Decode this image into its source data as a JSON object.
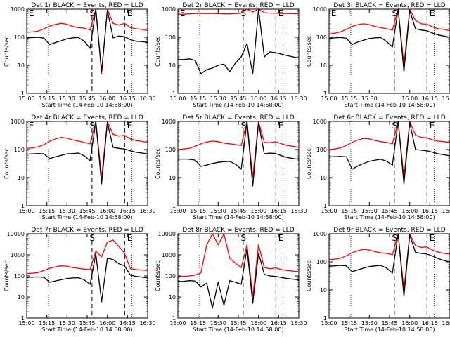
{
  "page": {
    "background": "#ffffff"
  },
  "colors": {
    "events": "#000000",
    "lld": "#ff0000",
    "axes": "#000000"
  },
  "chart_data": [
    {
      "type": "line",
      "title": "Det 1r BLACK = Events, RED = LLD",
      "xlabel": "Start Time (14-Feb-10 14:58:00)",
      "ylabel": "Counts/sec",
      "yscale": "log",
      "ylim": [
        1,
        1000
      ],
      "xlim": [
        0,
        100
      ],
      "x_ticks": [
        "15:00",
        "15:15",
        "15:30",
        "15:45",
        "16:00",
        "16:15",
        "16:30"
      ],
      "y_ticks": [
        "1",
        "10",
        "100",
        "1000"
      ],
      "markers": [
        "E",
        "S",
        "E"
      ],
      "series": [
        {
          "name": "BLACK = Events",
          "values": [
            95,
            97,
            100,
            93,
            55,
            65,
            75,
            88,
            95,
            98,
            72,
            40,
            1000,
            6,
            900,
            95,
            110,
            105,
            82,
            72,
            70,
            65
          ]
        },
        {
          "name": "RED = LLD",
          "values": [
            150,
            155,
            165,
            200,
            250,
            285,
            310,
            290,
            240,
            220,
            210,
            180,
            1000,
            5,
            1000,
            310,
            270,
            310,
            220,
            200,
            190,
            170
          ]
        }
      ]
    },
    {
      "type": "line",
      "title": "Det 2r BLACK = Events, RED = LLD",
      "xlabel": "Start Time (14-Feb-10 14:58:00)",
      "ylabel": "Counts/sec",
      "yscale": "log",
      "ylim": [
        1,
        1000
      ],
      "xlim": [
        0,
        100
      ],
      "x_ticks": [
        "15:00",
        "15:15",
        "15:30",
        "15:45",
        "16:00",
        "16:15",
        "16:30"
      ],
      "y_ticks": [
        "1",
        "10",
        "100",
        "1000"
      ],
      "markers": [
        "E",
        "S",
        "E"
      ],
      "series": [
        {
          "name": "BLACK = Events",
          "values": [
            16,
            16,
            17,
            15,
            5,
            7,
            8,
            10,
            11,
            6,
            12,
            20,
            60,
            5,
            1000,
            20,
            30,
            28,
            25,
            22,
            20,
            18
          ]
        },
        {
          "name": "RED = LLD",
          "values": [
            650,
            660,
            680,
            700,
            700,
            700,
            700,
            690,
            680,
            680,
            690,
            720,
            1000,
            800,
            1000,
            750,
            730,
            720,
            700,
            700,
            690,
            680
          ]
        }
      ]
    },
    {
      "type": "line",
      "title": "Det 3r BLACK = Events, RED = LLD",
      "xlabel": "Start Time (14-Feb-10 14:58:00)",
      "ylabel": "Counts/sec",
      "yscale": "log",
      "ylim": [
        1,
        1000
      ],
      "xlim": [
        0,
        100
      ],
      "x_ticks": [
        "15:00",
        "15:15",
        "15:30",
        "16:00",
        "16:15",
        "16:30"
      ],
      "y_ticks": [
        "1",
        "10",
        "100",
        "1000"
      ],
      "markers": [
        "E",
        "S",
        "E"
      ],
      "series": [
        {
          "name": "BLACK = Events",
          "values": [
            90,
            95,
            98,
            92,
            55,
            68,
            78,
            90,
            95,
            98,
            70,
            45,
            1000,
            6,
            900,
            200,
            180,
            170,
            140,
            120,
            110,
            100
          ]
        },
        {
          "name": "RED = LLD",
          "values": [
            130,
            140,
            155,
            190,
            240,
            280,
            300,
            280,
            240,
            220,
            200,
            180,
            1000,
            10,
            1000,
            400,
            300,
            290,
            230,
            200,
            190,
            170
          ]
        }
      ]
    },
    {
      "type": "line",
      "title": "Det 4r BLACK = Events, RED = LLD",
      "xlabel": "Start Time (14-Feb-10 14:58:00)",
      "ylabel": "Counts/sec",
      "yscale": "log",
      "ylim": [
        1,
        1000
      ],
      "xlim": [
        0,
        100
      ],
      "x_ticks": [
        "15:00",
        "15:15",
        "15:30",
        "15:45",
        "16:00",
        "16:15",
        "16:30"
      ],
      "y_ticks": [
        "1",
        "10",
        "100",
        "1000"
      ],
      "markers": [
        "E",
        "S",
        "E"
      ],
      "series": [
        {
          "name": "BLACK = Events",
          "values": [
            68,
            70,
            72,
            70,
            48,
            55,
            62,
            70,
            72,
            75,
            60,
            40,
            1000,
            6,
            900,
            120,
            110,
            105,
            90,
            80,
            75,
            70
          ]
        },
        {
          "name": "RED = LLD",
          "values": [
            110,
            115,
            125,
            150,
            200,
            240,
            270,
            255,
            220,
            200,
            180,
            160,
            1000,
            10,
            1000,
            350,
            300,
            320,
            240,
            210,
            195,
            180
          ]
        }
      ]
    },
    {
      "type": "line",
      "title": "Det 5r BLACK = Events, RED = LLD",
      "xlabel": "Start Time (14-Feb-10 14:58:00)",
      "ylabel": "Counts/sec",
      "yscale": "log",
      "ylim": [
        1,
        1000
      ],
      "xlim": [
        0,
        100
      ],
      "x_ticks": [
        "15:00",
        "15:15",
        "15:30",
        "15:45",
        "16:00",
        "16:15",
        "16:30"
      ],
      "y_ticks": [
        "1",
        "10",
        "100",
        "1000"
      ],
      "markers": [
        "S",
        "E"
      ],
      "series": [
        {
          "name": "BLACK = Events",
          "values": [
            45,
            46,
            45,
            42,
            25,
            28,
            32,
            35,
            37,
            38,
            30,
            20,
            1000,
            5,
            900,
            70,
            75,
            72,
            60,
            52,
            48,
            45
          ]
        },
        {
          "name": "RED = LLD",
          "values": [
            100,
            105,
            110,
            130,
            160,
            185,
            200,
            190,
            170,
            160,
            150,
            140,
            1000,
            10,
            1000,
            180,
            175,
            190,
            160,
            140,
            130,
            120
          ]
        }
      ]
    },
    {
      "type": "line",
      "title": "Det 6r BLACK = Events, RED = LLD",
      "xlabel": "Start Time (14-Feb-10 14:58:00)",
      "ylabel": "Counts/sec",
      "yscale": "log",
      "ylim": [
        1,
        1000
      ],
      "xlim": [
        0,
        100
      ],
      "x_ticks": [
        "15:00",
        "15:15",
        "15:30",
        "15:45",
        "16:00",
        "16:15",
        "16:30"
      ],
      "y_ticks": [
        "1",
        "10",
        "100",
        "1000"
      ],
      "markers": [
        "S",
        "E"
      ],
      "series": [
        {
          "name": "BLACK = Events",
          "values": [
            55,
            56,
            57,
            55,
            20,
            26,
            32,
            38,
            42,
            45,
            38,
            28,
            1000,
            6,
            900,
            100,
            95,
            90,
            80,
            70,
            65,
            60
          ]
        },
        {
          "name": "RED = LLD",
          "values": [
            100,
            105,
            115,
            140,
            180,
            220,
            250,
            240,
            210,
            190,
            180,
            160,
            1000,
            10,
            1000,
            330,
            270,
            260,
            220,
            200,
            190,
            180
          ]
        }
      ]
    },
    {
      "type": "line",
      "title": "Det 7r BLACK = Events, RED = LLD",
      "xlabel": "Start Time (14-Feb-10 14:58:00)",
      "ylabel": "Counts/sec",
      "yscale": "log",
      "ylim": [
        1,
        10000
      ],
      "xlim": [
        0,
        100
      ],
      "x_ticks": [
        "15:00",
        "15:15",
        "15:30",
        "15:45",
        "16:00",
        "16:15",
        "16:30"
      ],
      "y_ticks": [
        "1",
        "10",
        "100",
        "1000",
        "10000"
      ],
      "markers": [
        "S",
        "E"
      ],
      "series": [
        {
          "name": "BLACK = Events",
          "values": [
            85,
            88,
            90,
            85,
            50,
            58,
            66,
            75,
            80,
            82,
            65,
            40,
            1100,
            6,
            700,
            600,
            380,
            300,
            110,
            95,
            88,
            80
          ]
        },
        {
          "name": "RED = LLD",
          "values": [
            130,
            135,
            145,
            180,
            230,
            270,
            300,
            290,
            250,
            230,
            210,
            200,
            1500,
            800,
            4000,
            5000,
            2500,
            1200,
            220,
            200,
            190,
            180
          ]
        }
      ]
    },
    {
      "type": "line",
      "title": "Det 8r BLACK = Events, RED = LLD",
      "xlabel": "Start Time (14-Feb-10 14:58:00)",
      "ylabel": "Counts/sec",
      "yscale": "log",
      "ylim": [
        1,
        10000
      ],
      "xlim": [
        0,
        100
      ],
      "x_ticks": [
        "15:00",
        "15:15",
        "15:30",
        "15:45",
        "16:00",
        "16:15",
        "16:30"
      ],
      "y_ticks": [
        "1",
        "10",
        "100",
        "1000",
        "10000"
      ],
      "markers": [
        "S",
        "E"
      ],
      "series": [
        {
          "name": "BLACK = Events",
          "values": [
            55,
            56,
            60,
            58,
            30,
            45,
            3,
            50,
            4,
            60,
            50,
            40,
            2000,
            5,
            1200,
            120,
            100,
            95,
            85,
            75,
            70,
            65
          ]
        },
        {
          "name": "RED = LLD",
          "values": [
            90,
            95,
            100,
            110,
            140,
            3000,
            10000,
            3000,
            10000,
            700,
            400,
            250,
            3000,
            10,
            3000,
            250,
            220,
            240,
            200,
            180,
            170,
            160
          ]
        }
      ]
    },
    {
      "type": "line",
      "title": "Det 9r BLACK = Events, RED = LLD",
      "xlabel": "Start Time (14-Feb-10 14:58:00)",
      "ylabel": "Counts/sec",
      "yscale": "log",
      "ylim": [
        1,
        1000
      ],
      "xlim": [
        0,
        100
      ],
      "x_ticks": [
        "15:00",
        "15:15",
        "15:30",
        "15:45",
        "16:00",
        "16:15",
        "16:30"
      ],
      "y_ticks": [
        "1",
        "10",
        "100",
        "1000"
      ],
      "markers": [
        "S",
        "E"
      ],
      "series": [
        {
          "name": "BLACK = Events",
          "values": [
            70,
            72,
            75,
            72,
            45,
            52,
            60,
            68,
            72,
            75,
            60,
            40,
            1000,
            6,
            900,
            220,
            200,
            190,
            160,
            130,
            110,
            100
          ]
        },
        {
          "name": "RED = LLD",
          "values": [
            120,
            125,
            135,
            165,
            210,
            250,
            280,
            265,
            230,
            210,
            200,
            180,
            1000,
            10,
            1000,
            380,
            330,
            340,
            260,
            220,
            200,
            190
          ]
        }
      ]
    }
  ]
}
